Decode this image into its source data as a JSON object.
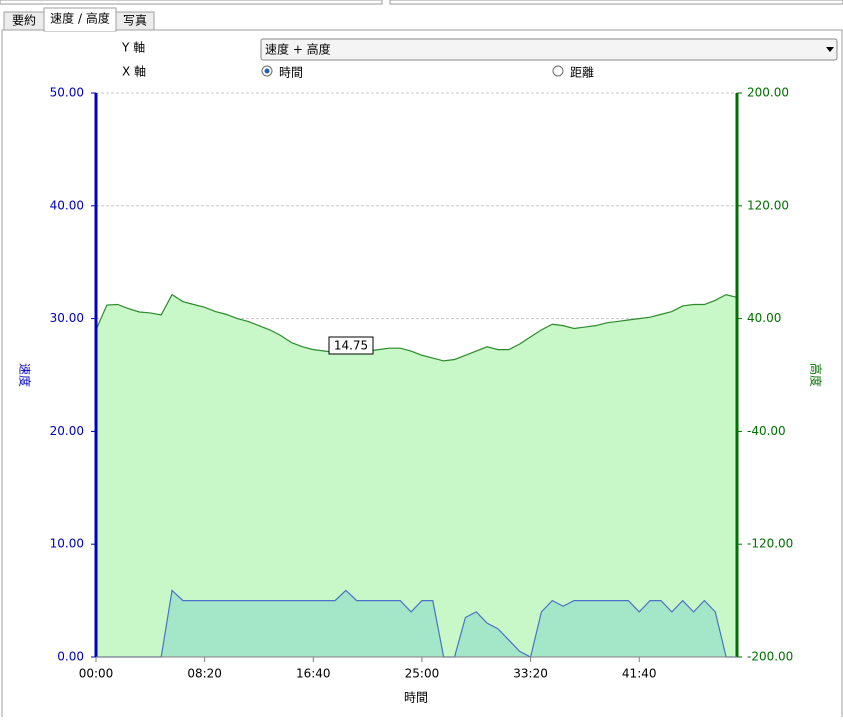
{
  "ui": {
    "tabs": [
      "要約",
      "速度 / 高度",
      "写真"
    ],
    "y_axis_label": "Y 軸",
    "y_select": "速度 + 高度",
    "x_axis_label": "X 軸",
    "x_options": [
      "時間",
      "距離"
    ]
  },
  "chart_data": {
    "type": "area",
    "y_label": "速度",
    "y2_label": "高度",
    "x_label": "時間",
    "annotations": [
      "14.75"
    ],
    "x": [
      0,
      50,
      100,
      150,
      200,
      250,
      300,
      350,
      400,
      450,
      500,
      550,
      600,
      650,
      700,
      750,
      800,
      850,
      900,
      950,
      1000,
      1050,
      1100,
      1150,
      1200,
      1250,
      1300,
      1350,
      1400,
      1450,
      1500,
      1550,
      1600,
      1650,
      1700,
      1750,
      1800,
      1850,
      1900,
      1950,
      2000,
      2050,
      2100,
      2150,
      2200,
      2250,
      2300,
      2350,
      2400,
      2450,
      2500,
      2550,
      2600,
      2650,
      2700,
      2750,
      2800,
      2850,
      2900,
      2950
    ],
    "series": [
      {
        "axis": "y2",
        "color": "#2e8b2e",
        "fill": "#c8f7c8",
        "values": [
          32,
          49.6,
          50,
          47,
          44.7,
          44,
          42.6,
          57,
          52,
          50,
          48,
          45,
          43,
          40,
          38,
          35,
          32,
          28,
          23,
          20,
          18,
          17,
          16,
          16,
          16,
          17,
          18,
          19,
          19,
          17,
          14,
          12,
          10,
          11,
          14,
          17,
          20,
          18,
          18,
          22,
          27,
          32,
          36,
          35,
          33,
          34,
          35,
          37,
          38,
          39,
          40,
          41,
          43,
          45,
          49,
          50,
          50,
          53,
          57,
          55
        ]
      },
      {
        "axis": "y",
        "color": "#4a72c8",
        "fill": "#a4e6c8",
        "values": [
          0,
          0,
          0,
          0,
          0,
          0,
          0,
          5.9,
          5,
          5,
          5,
          5,
          5,
          5,
          5,
          5,
          5,
          5,
          5,
          5,
          5,
          5,
          5,
          5.9,
          5,
          5,
          5,
          5,
          5,
          4,
          5,
          5,
          0,
          0,
          3.5,
          4,
          3,
          2.5,
          1.5,
          0.5,
          0,
          4,
          5,
          4.5,
          5,
          5,
          5,
          5,
          5,
          5,
          4,
          5,
          5,
          4,
          5,
          4,
          5,
          4,
          0,
          0
        ]
      }
    ],
    "xlim": [
      0,
      2950
    ],
    "xticks": [
      {
        "value": 0,
        "label": "00:00"
      },
      {
        "value": 500,
        "label": "08:20"
      },
      {
        "value": 1000,
        "label": "16:40"
      },
      {
        "value": 1500,
        "label": "25:00"
      },
      {
        "value": 2000,
        "label": "33:20"
      },
      {
        "value": 2500,
        "label": "41:40"
      }
    ],
    "ylim": [
      0,
      50
    ],
    "yticks": [
      {
        "value": 0,
        "label": "0.00"
      },
      {
        "value": 10,
        "label": "10.00"
      },
      {
        "value": 20,
        "label": "20.00"
      },
      {
        "value": 30,
        "label": "30.00"
      },
      {
        "value": 40,
        "label": "40.00"
      },
      {
        "value": 50,
        "label": "50.00"
      }
    ],
    "y2lim": [
      -200,
      200
    ],
    "y2ticks": [
      {
        "value": -200,
        "label": "-200.00"
      },
      {
        "value": -120,
        "label": "-120.00"
      },
      {
        "value": -40,
        "label": "-40.00"
      },
      {
        "value": 40,
        "label": "40.00"
      },
      {
        "value": 120,
        "label": "120.00"
      },
      {
        "value": 200,
        "label": "200.00"
      }
    ],
    "y_color": "#0000c0",
    "y2_color": "#007000",
    "grid": true
  }
}
